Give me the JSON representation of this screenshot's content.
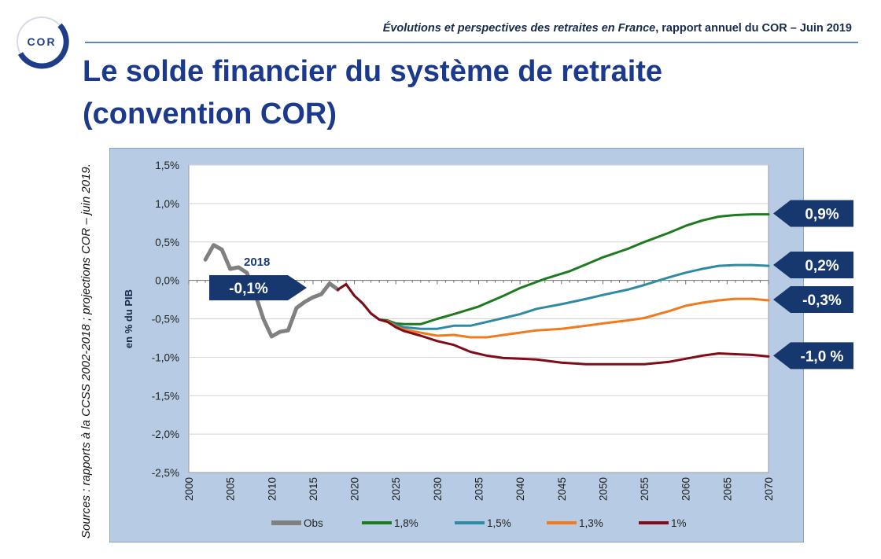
{
  "logo": {
    "text": "COR",
    "icon": "cor-logo-icon"
  },
  "header": {
    "report_italic": "Évolutions et perspectives des retraites en France",
    "report_rest": ", rapport annuel du COR – Juin 2019"
  },
  "title": {
    "line1": "Le solde financier du système de retraite",
    "line2": "(convention COR)"
  },
  "sources": "Sources : rapports à la CCSS 2002-2018 ; projections COR – juin 2019.",
  "colors": {
    "panel": "#b7cce4",
    "callout": "#16386e",
    "title": "#1b3a8e"
  },
  "chart_data": {
    "type": "line",
    "ylabel": "en % du PIB",
    "xlim": [
      2000,
      2070
    ],
    "ylim": [
      -2.5,
      1.5
    ],
    "yticks": [
      -2.5,
      -2.0,
      -1.5,
      -1.0,
      -0.5,
      0.0,
      0.5,
      1.0,
      1.5
    ],
    "ytick_labels": [
      "-2,5%",
      "-2,0%",
      "-1,5%",
      "-1,0%",
      "-0,5%",
      "0,0%",
      "0,5%",
      "1,0%",
      "1,5%"
    ],
    "xticks": [
      2000,
      2005,
      2010,
      2015,
      2020,
      2025,
      2030,
      2035,
      2040,
      2045,
      2050,
      2055,
      2060,
      2065,
      2070
    ],
    "grid": "horizontal",
    "legend_position": "bottom",
    "series": [
      {
        "name": "Obs",
        "color": "#808080",
        "width": 5,
        "x": [
          2002,
          2003,
          2004,
          2005,
          2006,
          2007,
          2008,
          2009,
          2010,
          2011,
          2012,
          2013,
          2014,
          2015,
          2016,
          2017,
          2018
        ],
        "y": [
          0.27,
          0.46,
          0.4,
          0.15,
          0.17,
          0.1,
          -0.17,
          -0.5,
          -0.73,
          -0.67,
          -0.65,
          -0.36,
          -0.28,
          -0.22,
          -0.18,
          -0.04,
          -0.12
        ]
      },
      {
        "name": "1,8%",
        "color": "#1e7a1e",
        "width": 3,
        "x": [
          2018,
          2019,
          2020,
          2021,
          2022,
          2023,
          2024,
          2025,
          2026,
          2027,
          2028,
          2030,
          2032,
          2035,
          2038,
          2040,
          2043,
          2046,
          2048,
          2050,
          2053,
          2055,
          2058,
          2060,
          2062,
          2064,
          2066,
          2068,
          2070
        ],
        "y": [
          -0.12,
          -0.05,
          -0.2,
          -0.3,
          -0.43,
          -0.51,
          -0.52,
          -0.56,
          -0.57,
          -0.57,
          -0.57,
          -0.5,
          -0.44,
          -0.34,
          -0.2,
          -0.1,
          0.02,
          0.12,
          0.21,
          0.3,
          0.41,
          0.5,
          0.62,
          0.71,
          0.78,
          0.83,
          0.85,
          0.86,
          0.86
        ]
      },
      {
        "name": "1,5%",
        "color": "#2f8aa4",
        "width": 3,
        "x": [
          2024,
          2025,
          2026,
          2028,
          2030,
          2032,
          2034,
          2036,
          2038,
          2040,
          2042,
          2045,
          2048,
          2050,
          2053,
          2055,
          2058,
          2060,
          2062,
          2064,
          2066,
          2068,
          2070
        ],
        "y": [
          -0.53,
          -0.58,
          -0.61,
          -0.63,
          -0.63,
          -0.59,
          -0.59,
          -0.54,
          -0.49,
          -0.44,
          -0.37,
          -0.31,
          -0.24,
          -0.19,
          -0.12,
          -0.06,
          0.04,
          0.1,
          0.15,
          0.19,
          0.2,
          0.2,
          0.19
        ]
      },
      {
        "name": "1,3%",
        "color": "#f07a1e",
        "width": 3,
        "x": [
          2024,
          2025,
          2026,
          2028,
          2030,
          2032,
          2034,
          2036,
          2038,
          2040,
          2042,
          2045,
          2048,
          2050,
          2053,
          2055,
          2058,
          2060,
          2062,
          2064,
          2066,
          2068,
          2070
        ],
        "y": [
          -0.53,
          -0.6,
          -0.64,
          -0.68,
          -0.72,
          -0.71,
          -0.74,
          -0.74,
          -0.71,
          -0.68,
          -0.65,
          -0.63,
          -0.59,
          -0.56,
          -0.52,
          -0.49,
          -0.4,
          -0.33,
          -0.29,
          -0.26,
          -0.24,
          -0.24,
          -0.26
        ]
      },
      {
        "name": "1%",
        "color": "#7f0c18",
        "width": 3,
        "x": [
          2018,
          2019,
          2020,
          2021,
          2022,
          2023,
          2024,
          2025,
          2026,
          2028,
          2030,
          2032,
          2034,
          2036,
          2038,
          2040,
          2042,
          2045,
          2048,
          2050,
          2053,
          2055,
          2058,
          2060,
          2062,
          2064,
          2066,
          2068,
          2070
        ],
        "y": [
          -0.12,
          -0.05,
          -0.2,
          -0.3,
          -0.43,
          -0.51,
          -0.54,
          -0.61,
          -0.66,
          -0.72,
          -0.79,
          -0.84,
          -0.93,
          -0.98,
          -1.01,
          -1.02,
          -1.03,
          -1.07,
          -1.09,
          -1.09,
          -1.09,
          -1.09,
          -1.06,
          -1.02,
          -0.98,
          -0.95,
          -0.96,
          -0.97,
          -0.99
        ]
      }
    ],
    "callouts": [
      {
        "text": "0,9%",
        "value": 0.86
      },
      {
        "text": "0,2%",
        "value": 0.19
      },
      {
        "text": "-0,3%",
        "value": -0.26
      },
      {
        "text": "-1,0 %",
        "value": -0.99
      }
    ],
    "annotation": {
      "year_text": "2018",
      "value_text": "-0,1%",
      "x": 2018,
      "y": -0.12
    }
  }
}
